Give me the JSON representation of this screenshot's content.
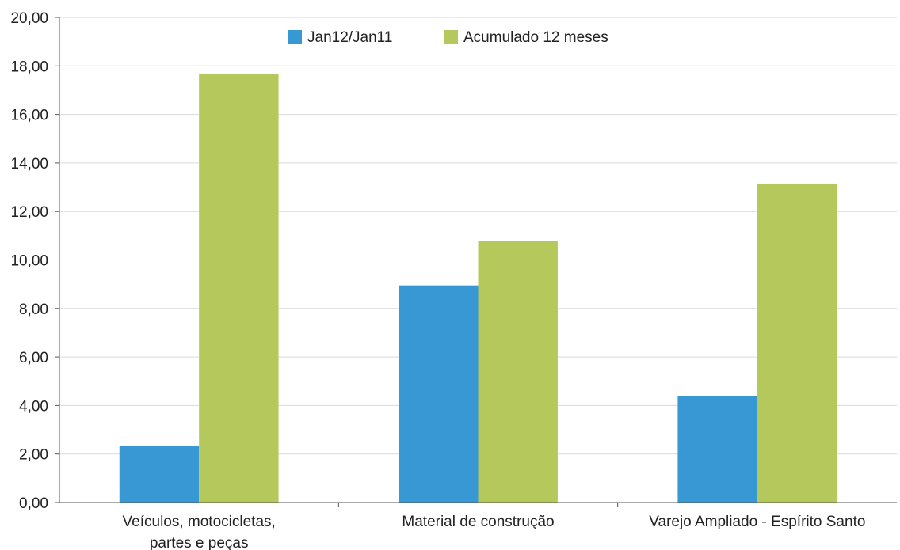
{
  "chart_data": {
    "type": "bar",
    "categories": [
      [
        "Veículos, motocicletas,",
        "partes e peças"
      ],
      [
        "Material de construção"
      ],
      [
        "Varejo Ampliado - Espírito Santo"
      ]
    ],
    "series": [
      {
        "name": "Jan12/Jan11",
        "color": "#3898d3",
        "values": [
          2.35,
          8.95,
          4.4
        ]
      },
      {
        "name": "Acumulado 12 meses",
        "color": "#b5c85c",
        "values": [
          17.65,
          10.8,
          13.15
        ]
      }
    ],
    "ylim": [
      0,
      20
    ],
    "yticks": [
      "0,00",
      "2,00",
      "4,00",
      "6,00",
      "8,00",
      "10,00",
      "12,00",
      "14,00",
      "16,00",
      "18,00",
      "20,00"
    ],
    "grid": true,
    "legend_position": "top-center",
    "title": "",
    "xlabel": "",
    "ylabel": ""
  }
}
